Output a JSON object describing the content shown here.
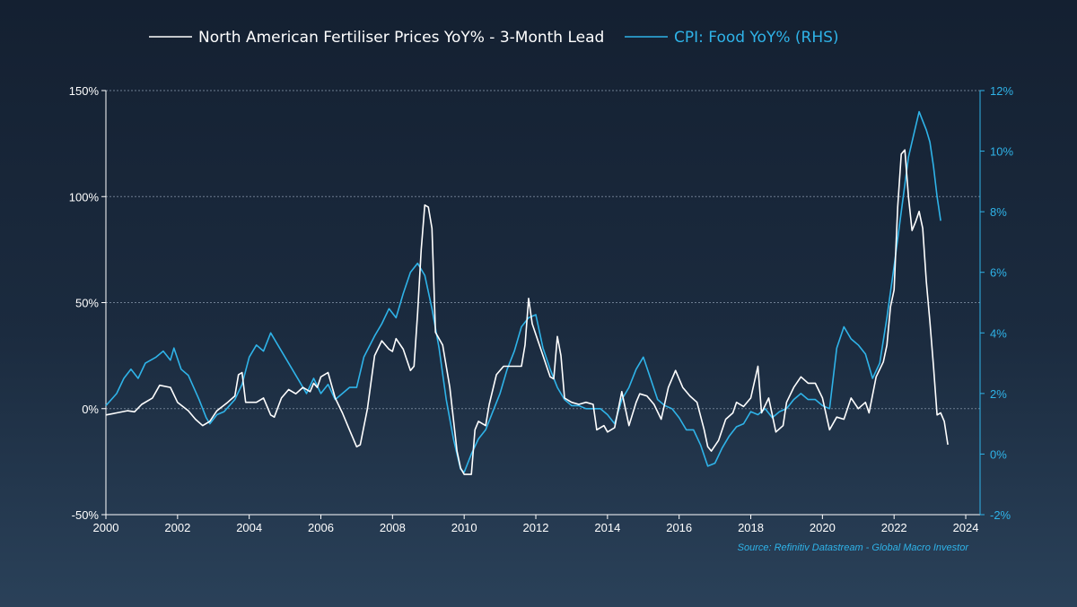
{
  "chart_data": {
    "type": "line",
    "title": "",
    "source": "Source: Refinitiv Datastream - Global Macro Investor",
    "colors": {
      "left_series": "#ffffff",
      "right_series": "#2fb3e8",
      "left_axis": "#ffffff",
      "right_axis": "#2fb3e8",
      "grid": "#6f7f92"
    },
    "legend": {
      "position": "top-center",
      "items": [
        {
          "name": "North American Fertiliser Prices YoY% - 3-Month Lead",
          "color": "#ffffff"
        },
        {
          "name": "CPI: Food YoY% (RHS)",
          "color": "#2fb3e8"
        }
      ]
    },
    "x_axis": {
      "range": [
        2000,
        2024.4
      ],
      "ticks": [
        2000,
        2002,
        2004,
        2006,
        2008,
        2010,
        2012,
        2014,
        2016,
        2018,
        2020,
        2022,
        2024
      ],
      "tick_labels": [
        "2000",
        "2002",
        "2004",
        "2006",
        "2008",
        "2010",
        "2012",
        "2014",
        "2016",
        "2018",
        "2020",
        "2022",
        "2024"
      ]
    },
    "y_left": {
      "range": [
        -50,
        150
      ],
      "ticks": [
        -50,
        0,
        50,
        100,
        150
      ],
      "tick_labels": [
        "-50%",
        "0%",
        "50%",
        "100%",
        "150%"
      ],
      "grid_at": [
        0,
        50,
        100,
        150
      ]
    },
    "y_right": {
      "range": [
        -2,
        12
      ],
      "ticks": [
        -2,
        0,
        2,
        4,
        6,
        8,
        10,
        12
      ],
      "tick_labels": [
        "-2%",
        "0%",
        "2%",
        "4%",
        "6%",
        "8%",
        "10%",
        "12%"
      ]
    },
    "series": [
      {
        "name": "North American Fertiliser Prices YoY% - 3-Month Lead",
        "axis": "left",
        "points": [
          [
            2000.0,
            -3
          ],
          [
            2000.3,
            -2
          ],
          [
            2000.6,
            -1
          ],
          [
            2000.8,
            -1.5
          ],
          [
            2001.0,
            2
          ],
          [
            2001.3,
            5
          ],
          [
            2001.5,
            11
          ],
          [
            2001.8,
            10
          ],
          [
            2002.0,
            3
          ],
          [
            2002.3,
            -1
          ],
          [
            2002.5,
            -5
          ],
          [
            2002.7,
            -8
          ],
          [
            2002.9,
            -6
          ],
          [
            2003.1,
            -1
          ],
          [
            2003.4,
            3
          ],
          [
            2003.6,
            6
          ],
          [
            2003.7,
            16
          ],
          [
            2003.8,
            17
          ],
          [
            2003.9,
            3
          ],
          [
            2004.2,
            3
          ],
          [
            2004.4,
            5
          ],
          [
            2004.6,
            -3
          ],
          [
            2004.7,
            -4
          ],
          [
            2004.9,
            5
          ],
          [
            2005.1,
            9
          ],
          [
            2005.3,
            7
          ],
          [
            2005.5,
            10
          ],
          [
            2005.7,
            8
          ],
          [
            2005.8,
            12
          ],
          [
            2005.9,
            10
          ],
          [
            2006.0,
            15
          ],
          [
            2006.2,
            17
          ],
          [
            2006.4,
            5
          ],
          [
            2006.6,
            -2
          ],
          [
            2006.8,
            -10
          ],
          [
            2007.0,
            -18
          ],
          [
            2007.1,
            -17
          ],
          [
            2007.3,
            0
          ],
          [
            2007.5,
            25
          ],
          [
            2007.7,
            32
          ],
          [
            2007.9,
            28
          ],
          [
            2008.0,
            27
          ],
          [
            2008.1,
            33
          ],
          [
            2008.3,
            28
          ],
          [
            2008.5,
            18
          ],
          [
            2008.6,
            20
          ],
          [
            2008.7,
            45
          ],
          [
            2008.8,
            75
          ],
          [
            2008.9,
            96
          ],
          [
            2009.0,
            95
          ],
          [
            2009.1,
            85
          ],
          [
            2009.2,
            36
          ],
          [
            2009.4,
            30
          ],
          [
            2009.6,
            10
          ],
          [
            2009.8,
            -20
          ],
          [
            2009.9,
            -28
          ],
          [
            2010.0,
            -31
          ],
          [
            2010.2,
            -31
          ],
          [
            2010.3,
            -10
          ],
          [
            2010.4,
            -6
          ],
          [
            2010.6,
            -8
          ],
          [
            2010.7,
            2
          ],
          [
            2010.9,
            16
          ],
          [
            2011.1,
            20
          ],
          [
            2011.2,
            20
          ],
          [
            2011.4,
            20
          ],
          [
            2011.6,
            20
          ],
          [
            2011.7,
            30
          ],
          [
            2011.8,
            52
          ],
          [
            2011.9,
            40
          ],
          [
            2012.1,
            30
          ],
          [
            2012.3,
            20
          ],
          [
            2012.4,
            15
          ],
          [
            2012.5,
            14
          ],
          [
            2012.6,
            34
          ],
          [
            2012.7,
            25
          ],
          [
            2012.8,
            5
          ],
          [
            2013.0,
            3
          ],
          [
            2013.2,
            2
          ],
          [
            2013.4,
            3
          ],
          [
            2013.6,
            2
          ],
          [
            2013.7,
            -10
          ],
          [
            2013.9,
            -8
          ],
          [
            2014.0,
            -11
          ],
          [
            2014.2,
            -9
          ],
          [
            2014.4,
            8
          ],
          [
            2014.6,
            -8
          ],
          [
            2014.8,
            3
          ],
          [
            2014.9,
            7
          ],
          [
            2015.1,
            6
          ],
          [
            2015.3,
            2
          ],
          [
            2015.5,
            -5
          ],
          [
            2015.7,
            10
          ],
          [
            2015.9,
            18
          ],
          [
            2016.1,
            10
          ],
          [
            2016.3,
            6
          ],
          [
            2016.5,
            3
          ],
          [
            2016.7,
            -10
          ],
          [
            2016.8,
            -18
          ],
          [
            2016.9,
            -20
          ],
          [
            2017.1,
            -15
          ],
          [
            2017.3,
            -5
          ],
          [
            2017.5,
            -2
          ],
          [
            2017.6,
            3
          ],
          [
            2017.8,
            1
          ],
          [
            2018.0,
            5
          ],
          [
            2018.2,
            20
          ],
          [
            2018.3,
            -2
          ],
          [
            2018.5,
            5
          ],
          [
            2018.7,
            -11
          ],
          [
            2018.9,
            -8
          ],
          [
            2019.0,
            3
          ],
          [
            2019.2,
            10
          ],
          [
            2019.4,
            15
          ],
          [
            2019.6,
            12
          ],
          [
            2019.8,
            12
          ],
          [
            2020.0,
            5
          ],
          [
            2020.2,
            -10
          ],
          [
            2020.4,
            -4
          ],
          [
            2020.6,
            -5
          ],
          [
            2020.8,
            5
          ],
          [
            2021.0,
            0
          ],
          [
            2021.2,
            3
          ],
          [
            2021.3,
            -2
          ],
          [
            2021.5,
            15
          ],
          [
            2021.7,
            22
          ],
          [
            2021.8,
            30
          ],
          [
            2021.9,
            48
          ],
          [
            2022.0,
            56
          ],
          [
            2022.1,
            95
          ],
          [
            2022.2,
            120
          ],
          [
            2022.3,
            122
          ],
          [
            2022.4,
            100
          ],
          [
            2022.5,
            84
          ],
          [
            2022.6,
            88
          ],
          [
            2022.7,
            93
          ],
          [
            2022.8,
            85
          ],
          [
            2022.9,
            60
          ],
          [
            2023.0,
            41
          ],
          [
            2023.1,
            20
          ],
          [
            2023.2,
            -3
          ],
          [
            2023.3,
            -2
          ],
          [
            2023.4,
            -6
          ],
          [
            2023.5,
            -17
          ]
        ]
      },
      {
        "name": "CPI: Food YoY% (RHS)",
        "axis": "right",
        "points": [
          [
            2000.0,
            1.6
          ],
          [
            2000.3,
            2.0
          ],
          [
            2000.5,
            2.5
          ],
          [
            2000.7,
            2.8
          ],
          [
            2000.9,
            2.5
          ],
          [
            2001.1,
            3.0
          ],
          [
            2001.4,
            3.2
          ],
          [
            2001.6,
            3.4
          ],
          [
            2001.8,
            3.1
          ],
          [
            2001.9,
            3.5
          ],
          [
            2002.1,
            2.8
          ],
          [
            2002.3,
            2.6
          ],
          [
            2002.6,
            1.8
          ],
          [
            2002.8,
            1.2
          ],
          [
            2002.9,
            1.0
          ],
          [
            2003.1,
            1.3
          ],
          [
            2003.3,
            1.4
          ],
          [
            2003.6,
            1.8
          ],
          [
            2003.8,
            2.3
          ],
          [
            2004.0,
            3.2
          ],
          [
            2004.2,
            3.6
          ],
          [
            2004.4,
            3.4
          ],
          [
            2004.6,
            4.0
          ],
          [
            2004.8,
            3.6
          ],
          [
            2005.0,
            3.2
          ],
          [
            2005.2,
            2.8
          ],
          [
            2005.4,
            2.4
          ],
          [
            2005.6,
            2.0
          ],
          [
            2005.8,
            2.5
          ],
          [
            2006.0,
            2.0
          ],
          [
            2006.2,
            2.3
          ],
          [
            2006.4,
            1.8
          ],
          [
            2006.6,
            2.0
          ],
          [
            2006.8,
            2.2
          ],
          [
            2007.0,
            2.2
          ],
          [
            2007.2,
            3.2
          ],
          [
            2007.5,
            3.9
          ],
          [
            2007.7,
            4.3
          ],
          [
            2007.9,
            4.8
          ],
          [
            2008.1,
            4.5
          ],
          [
            2008.3,
            5.3
          ],
          [
            2008.5,
            6.0
          ],
          [
            2008.7,
            6.3
          ],
          [
            2008.9,
            5.9
          ],
          [
            2009.1,
            4.8
          ],
          [
            2009.3,
            3.5
          ],
          [
            2009.5,
            1.8
          ],
          [
            2009.7,
            0.5
          ],
          [
            2009.9,
            -0.5
          ],
          [
            2010.0,
            -0.6
          ],
          [
            2010.2,
            0.0
          ],
          [
            2010.4,
            0.5
          ],
          [
            2010.6,
            0.8
          ],
          [
            2010.8,
            1.4
          ],
          [
            2011.0,
            2.0
          ],
          [
            2011.2,
            2.8
          ],
          [
            2011.4,
            3.4
          ],
          [
            2011.6,
            4.2
          ],
          [
            2011.8,
            4.5
          ],
          [
            2012.0,
            4.6
          ],
          [
            2012.2,
            3.5
          ],
          [
            2012.4,
            2.8
          ],
          [
            2012.6,
            2.2
          ],
          [
            2012.8,
            1.8
          ],
          [
            2013.0,
            1.6
          ],
          [
            2013.2,
            1.6
          ],
          [
            2013.4,
            1.5
          ],
          [
            2013.6,
            1.5
          ],
          [
            2013.8,
            1.5
          ],
          [
            2014.0,
            1.3
          ],
          [
            2014.2,
            1.0
          ],
          [
            2014.4,
            1.8
          ],
          [
            2014.6,
            2.2
          ],
          [
            2014.8,
            2.8
          ],
          [
            2015.0,
            3.2
          ],
          [
            2015.2,
            2.5
          ],
          [
            2015.4,
            1.8
          ],
          [
            2015.6,
            1.6
          ],
          [
            2015.8,
            1.5
          ],
          [
            2016.0,
            1.2
          ],
          [
            2016.2,
            0.8
          ],
          [
            2016.4,
            0.8
          ],
          [
            2016.6,
            0.3
          ],
          [
            2016.8,
            -0.4
          ],
          [
            2017.0,
            -0.3
          ],
          [
            2017.2,
            0.2
          ],
          [
            2017.4,
            0.6
          ],
          [
            2017.6,
            0.9
          ],
          [
            2017.8,
            1.0
          ],
          [
            2018.0,
            1.4
          ],
          [
            2018.2,
            1.3
          ],
          [
            2018.4,
            1.5
          ],
          [
            2018.6,
            1.2
          ],
          [
            2018.8,
            1.4
          ],
          [
            2019.0,
            1.5
          ],
          [
            2019.2,
            1.8
          ],
          [
            2019.4,
            2.0
          ],
          [
            2019.6,
            1.8
          ],
          [
            2019.8,
            1.8
          ],
          [
            2020.0,
            1.6
          ],
          [
            2020.2,
            1.5
          ],
          [
            2020.4,
            3.5
          ],
          [
            2020.6,
            4.2
          ],
          [
            2020.8,
            3.8
          ],
          [
            2021.0,
            3.6
          ],
          [
            2021.2,
            3.3
          ],
          [
            2021.4,
            2.5
          ],
          [
            2021.6,
            3.0
          ],
          [
            2021.8,
            4.5
          ],
          [
            2022.0,
            6.2
          ],
          [
            2022.2,
            8.0
          ],
          [
            2022.4,
            9.8
          ],
          [
            2022.6,
            10.8
          ],
          [
            2022.7,
            11.3
          ],
          [
            2022.8,
            11.0
          ],
          [
            2022.9,
            10.7
          ],
          [
            2023.0,
            10.3
          ],
          [
            2023.1,
            9.5
          ],
          [
            2023.2,
            8.5
          ],
          [
            2023.3,
            7.7
          ]
        ]
      }
    ]
  }
}
